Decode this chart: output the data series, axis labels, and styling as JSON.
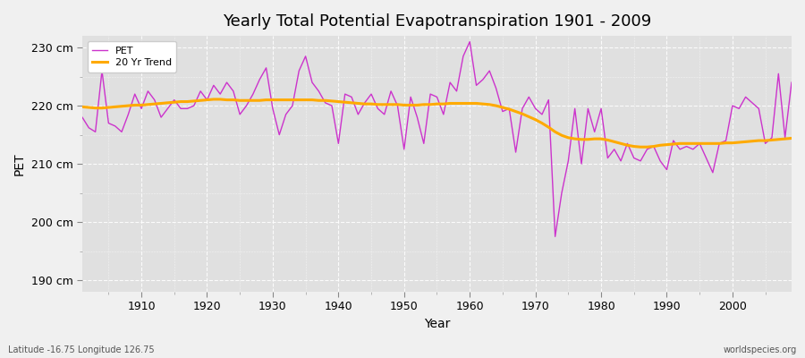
{
  "title": "Yearly Total Potential Evapotranspiration 1901 - 2009",
  "xlabel": "Year",
  "ylabel": "PET",
  "subtitle_left": "Latitude -16.75 Longitude 126.75",
  "watermark": "worldspecies.org",
  "ylim": [
    188,
    232
  ],
  "yticks": [
    190,
    200,
    210,
    220,
    230
  ],
  "ytick_labels": [
    "190 cm",
    "200 cm",
    "210 cm",
    "220 cm",
    "230 cm"
  ],
  "pet_color": "#cc33cc",
  "trend_color": "#ffaa00",
  "fig_bg": "#f0f0f0",
  "plot_bg": "#e0e0e0",
  "years": [
    1901,
    1902,
    1903,
    1904,
    1905,
    1906,
    1907,
    1908,
    1909,
    1910,
    1911,
    1912,
    1913,
    1914,
    1915,
    1916,
    1917,
    1918,
    1919,
    1920,
    1921,
    1922,
    1923,
    1924,
    1925,
    1926,
    1927,
    1928,
    1929,
    1930,
    1931,
    1932,
    1933,
    1934,
    1935,
    1936,
    1937,
    1938,
    1939,
    1940,
    1941,
    1942,
    1943,
    1944,
    1945,
    1946,
    1947,
    1948,
    1949,
    1950,
    1951,
    1952,
    1953,
    1954,
    1955,
    1956,
    1957,
    1958,
    1959,
    1960,
    1961,
    1962,
    1963,
    1964,
    1965,
    1966,
    1967,
    1968,
    1969,
    1970,
    1971,
    1972,
    1973,
    1974,
    1975,
    1976,
    1977,
    1978,
    1979,
    1980,
    1981,
    1982,
    1983,
    1984,
    1985,
    1986,
    1987,
    1988,
    1989,
    1990,
    1991,
    1992,
    1993,
    1994,
    1995,
    1996,
    1997,
    1998,
    1999,
    2000,
    2001,
    2002,
    2003,
    2004,
    2005,
    2006,
    2007,
    2008,
    2009
  ],
  "pet": [
    218.0,
    216.2,
    215.5,
    226.0,
    217.0,
    216.5,
    215.5,
    218.5,
    222.0,
    219.5,
    222.5,
    221.0,
    218.0,
    219.5,
    221.0,
    219.5,
    219.5,
    220.0,
    222.5,
    221.0,
    223.5,
    222.0,
    224.0,
    222.5,
    218.5,
    220.0,
    222.0,
    224.5,
    226.5,
    219.5,
    215.0,
    218.5,
    220.0,
    226.0,
    228.5,
    224.0,
    222.5,
    220.5,
    220.0,
    213.5,
    222.0,
    221.5,
    218.5,
    220.5,
    222.0,
    219.5,
    218.5,
    222.5,
    220.0,
    212.5,
    221.5,
    218.0,
    213.5,
    222.0,
    221.5,
    218.5,
    224.0,
    222.5,
    228.5,
    231.0,
    223.5,
    224.5,
    226.0,
    223.0,
    219.0,
    219.5,
    212.0,
    219.5,
    221.5,
    219.5,
    218.5,
    221.0,
    197.5,
    205.0,
    210.5,
    219.5,
    210.0,
    219.5,
    215.5,
    219.5,
    211.0,
    212.5,
    210.5,
    213.5,
    211.0,
    210.5,
    212.5,
    213.0,
    210.5,
    209.0,
    214.0,
    212.5,
    213.0,
    212.5,
    213.5,
    211.0,
    208.5,
    213.5,
    214.0,
    220.0,
    219.5,
    221.5,
    220.5,
    219.5,
    213.5,
    214.5,
    225.5,
    214.5,
    224.0
  ],
  "trend": [
    219.8,
    219.7,
    219.6,
    219.6,
    219.7,
    219.8,
    219.9,
    220.0,
    220.1,
    220.1,
    220.2,
    220.3,
    220.4,
    220.5,
    220.6,
    220.7,
    220.7,
    220.8,
    220.9,
    221.0,
    221.1,
    221.1,
    221.0,
    221.0,
    220.9,
    220.9,
    220.9,
    220.9,
    221.0,
    221.0,
    221.0,
    221.0,
    221.0,
    221.0,
    221.0,
    221.0,
    220.9,
    220.9,
    220.8,
    220.7,
    220.6,
    220.5,
    220.4,
    220.3,
    220.3,
    220.2,
    220.2,
    220.2,
    220.2,
    220.1,
    220.1,
    220.1,
    220.2,
    220.2,
    220.3,
    220.3,
    220.4,
    220.4,
    220.4,
    220.4,
    220.4,
    220.3,
    220.2,
    220.0,
    219.7,
    219.4,
    219.0,
    218.6,
    218.1,
    217.6,
    217.0,
    216.3,
    215.5,
    214.9,
    214.5,
    214.3,
    214.2,
    214.2,
    214.3,
    214.3,
    214.1,
    213.8,
    213.5,
    213.2,
    213.0,
    212.9,
    212.9,
    213.0,
    213.2,
    213.3,
    213.4,
    213.5,
    213.5,
    213.5,
    213.5,
    213.5,
    213.5,
    213.5,
    213.6,
    213.6,
    213.7,
    213.8,
    213.9,
    214.0,
    214.0,
    214.1,
    214.2,
    214.3,
    214.4
  ],
  "xticks": [
    1910,
    1920,
    1930,
    1940,
    1950,
    1960,
    1970,
    1980,
    1990,
    2000
  ],
  "title_fontsize": 13,
  "label_fontsize": 9,
  "legend_fontsize": 8
}
